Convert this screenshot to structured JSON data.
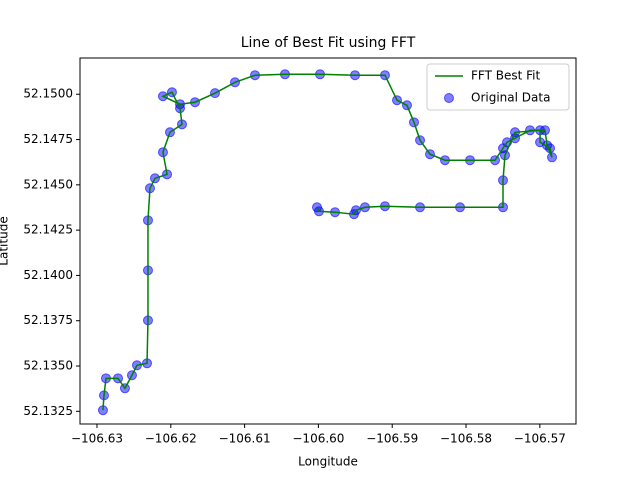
{
  "chart_data": {
    "type": "line-scatter",
    "title": "Line of Best Fit using FFT",
    "x_label": "Longitude",
    "y_label": "Latitude",
    "xlim": [
      -106.6323,
      -106.5651
    ],
    "ylim": [
      52.1318,
      52.152
    ],
    "xticks": [
      {
        "value": -106.63,
        "label": "−106.63"
      },
      {
        "value": -106.62,
        "label": "−106.62"
      },
      {
        "value": -106.61,
        "label": "−106.61"
      },
      {
        "value": -106.6,
        "label": "−106.60"
      },
      {
        "value": -106.59,
        "label": "−106.59"
      },
      {
        "value": -106.58,
        "label": "−106.58"
      },
      {
        "value": -106.57,
        "label": "−106.57"
      }
    ],
    "yticks": [
      52.1325,
      {
        "value": 52.135,
        "label": "52.1350"
      },
      52.1375,
      {
        "value": 52.14,
        "label": "52.1400"
      },
      52.1425,
      {
        "value": 52.145,
        "label": "52.1450"
      },
      52.1475,
      {
        "value": 52.15,
        "label": "52.1500"
      }
    ],
    "legend": "upper right",
    "series": [
      {
        "name": "FFT Best Fit",
        "type": "line",
        "color": "green",
        "x": [
          -106.62919,
          -106.62905,
          -106.62878,
          -106.62715,
          -106.62621,
          -106.62526,
          -106.62458,
          -106.62322,
          -106.62309,
          -106.62309,
          -106.62309,
          -106.62282,
          -106.62214,
          -106.62051,
          -106.62106,
          -106.62011,
          -106.61848,
          -106.61875,
          -106.61984,
          -106.62106,
          -106.61875,
          -106.61672,
          -106.61401,
          -106.6113,
          -106.60859,
          -106.60453,
          -106.59978,
          -106.59504,
          -106.59098,
          -106.58935,
          -106.588,
          -106.58705,
          -106.58623,
          -106.58488,
          -106.58285,
          -106.57946,
          -106.57607,
          -106.57499,
          -106.57444,
          -106.57336,
          -106.57133,
          -106.5693,
          -106.56902,
          -106.56835,
          -106.56862,
          -106.56997,
          -106.56997,
          -106.57336,
          -106.57472,
          -106.57499,
          -106.57499,
          -106.58081,
          -106.58623,
          -106.59098,
          -106.59369,
          -106.59491,
          -106.59518,
          -106.59775,
          -106.59992,
          -106.60019
        ],
        "values": [
          52.13256,
          52.13338,
          52.13432,
          52.13432,
          52.13377,
          52.13449,
          52.13504,
          52.13515,
          52.13752,
          52.14028,
          52.14304,
          52.14481,
          52.14536,
          52.14558,
          52.1468,
          52.1479,
          52.14834,
          52.14923,
          52.15011,
          52.14989,
          52.14945,
          52.14956,
          52.15006,
          52.15066,
          52.15105,
          52.1511,
          52.1511,
          52.15105,
          52.15105,
          52.14967,
          52.14939,
          52.14845,
          52.14746,
          52.14669,
          52.14636,
          52.14636,
          52.14636,
          52.14702,
          52.14735,
          52.14757,
          52.14801,
          52.14801,
          52.14718,
          52.14652,
          52.14702,
          52.14735,
          52.14801,
          52.1479,
          52.14663,
          52.14525,
          52.14376,
          52.14376,
          52.14376,
          52.14382,
          52.14376,
          52.1436,
          52.14338,
          52.14349,
          52.14354,
          52.14376
        ]
      },
      {
        "name": "Original Data",
        "type": "scatter",
        "color": "blue",
        "x": [
          -106.62919,
          -106.62905,
          -106.62878,
          -106.62715,
          -106.62621,
          -106.62526,
          -106.62458,
          -106.62322,
          -106.62309,
          -106.62309,
          -106.62309,
          -106.62282,
          -106.62214,
          -106.62051,
          -106.62106,
          -106.62011,
          -106.61848,
          -106.61875,
          -106.61984,
          -106.62106,
          -106.61875,
          -106.61672,
          -106.61401,
          -106.6113,
          -106.60859,
          -106.60453,
          -106.59978,
          -106.59504,
          -106.59098,
          -106.58935,
          -106.588,
          -106.58705,
          -106.58623,
          -106.58488,
          -106.58285,
          -106.57946,
          -106.57607,
          -106.57499,
          -106.57444,
          -106.57336,
          -106.57133,
          -106.5693,
          -106.56902,
          -106.56835,
          -106.56862,
          -106.56997,
          -106.56997,
          -106.57336,
          -106.57472,
          -106.57499,
          -106.57499,
          -106.58081,
          -106.58623,
          -106.59098,
          -106.59369,
          -106.59491,
          -106.59518,
          -106.59775,
          -106.59992,
          -106.60019
        ],
        "values": [
          52.13256,
          52.13338,
          52.13432,
          52.13432,
          52.13377,
          52.13449,
          52.13504,
          52.13515,
          52.13752,
          52.14028,
          52.14304,
          52.14481,
          52.14536,
          52.14558,
          52.1468,
          52.1479,
          52.14834,
          52.14923,
          52.15011,
          52.14989,
          52.14945,
          52.14956,
          52.15006,
          52.15066,
          52.15105,
          52.1511,
          52.1511,
          52.15105,
          52.15105,
          52.14967,
          52.14939,
          52.14845,
          52.14746,
          52.14669,
          52.14636,
          52.14636,
          52.14636,
          52.14702,
          52.14735,
          52.14757,
          52.14801,
          52.14801,
          52.14718,
          52.14652,
          52.14702,
          52.14735,
          52.14801,
          52.1479,
          52.14663,
          52.14525,
          52.14376,
          52.14376,
          52.14376,
          52.14382,
          52.14376,
          52.1436,
          52.14338,
          52.14349,
          52.14354,
          52.14376
        ]
      }
    ]
  }
}
